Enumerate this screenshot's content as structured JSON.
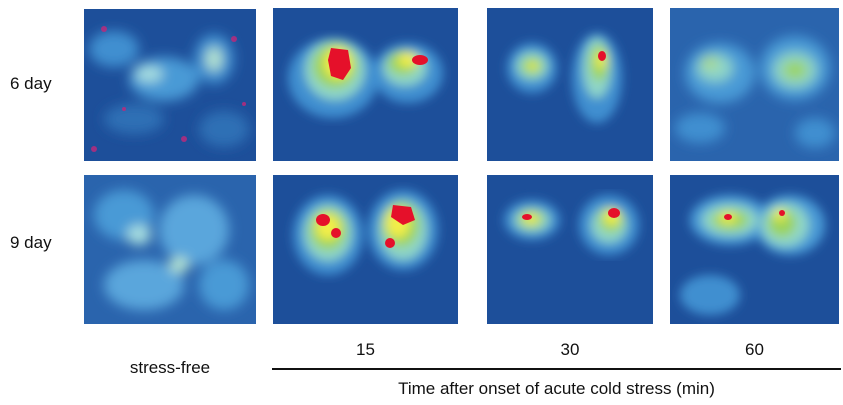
{
  "rows": [
    {
      "label": "6 day"
    },
    {
      "label": "9 day"
    }
  ],
  "columns": [
    {
      "label": "stress-free"
    },
    {
      "label": "15"
    },
    {
      "label": "30"
    },
    {
      "label": "60"
    }
  ],
  "axis_title": "Time after onset of acute cold stress (min)",
  "colors": {
    "background": "#1d4f9a",
    "low": "#3f8fd0",
    "mid": "#8fd6c8",
    "green": "#9bd35a",
    "yellow": "#f3ee4a",
    "red": "#e5102a",
    "magenta": "#c2287a"
  }
}
